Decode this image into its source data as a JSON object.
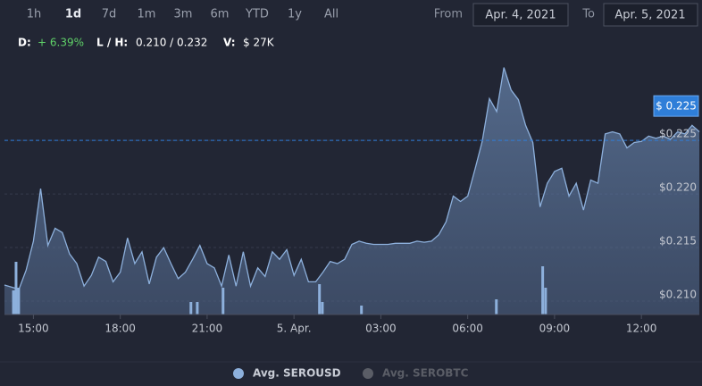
{
  "chart_data": {
    "type": "area",
    "range_selector": {
      "buttons": [
        "1h",
        "1d",
        "7d",
        "1m",
        "3m",
        "6m",
        "YTD",
        "1y",
        "All"
      ],
      "selected": 1,
      "from_label": "From",
      "from": "Apr. 4, 2021",
      "to_label": "To",
      "to": "Apr. 5, 2021"
    },
    "stats": {
      "change_label": "D:",
      "change": "+ 6.39%",
      "range_label": "L / H:",
      "range": "0.210 / 0.232",
      "volume_label": "V:",
      "volume": "$ 27K"
    },
    "x": [
      14,
      14.25,
      14.5,
      14.75,
      15,
      15.25,
      15.5,
      15.75,
      16,
      16.25,
      16.5,
      16.75,
      17,
      17.25,
      17.5,
      17.75,
      18,
      18.25,
      18.5,
      18.75,
      19,
      19.25,
      19.5,
      19.75,
      20,
      20.25,
      20.5,
      20.75,
      21,
      21.25,
      21.5,
      21.75,
      22,
      22.25,
      22.5,
      22.75,
      23,
      23.25,
      23.5,
      23.75,
      24,
      24.25,
      24.5,
      24.75,
      25,
      25.25,
      25.5,
      25.75,
      26,
      26.25,
      26.5,
      26.75,
      27,
      27.25,
      27.5,
      27.75,
      28,
      28.25,
      28.5,
      28.75,
      29,
      29.25,
      29.5,
      29.75,
      30,
      30.25,
      30.5,
      30.75,
      31,
      31.25,
      31.5,
      31.75,
      32,
      32.25,
      32.5,
      32.75,
      33,
      33.25,
      33.5,
      33.75,
      34,
      34.25,
      34.5,
      34.75,
      35,
      35.25,
      35.5,
      35.75,
      36,
      36.25,
      36.5,
      36.75,
      37,
      37.25,
      37.5,
      37.75,
      38
    ],
    "series": [
      {
        "name": "Avg. SEROUSD",
        "color": "#8db0dc",
        "values": [
          0.2115,
          0.2113,
          0.2111,
          0.2129,
          0.2156,
          0.2205,
          0.2152,
          0.2168,
          0.2164,
          0.2144,
          0.2135,
          0.2114,
          0.2124,
          0.2141,
          0.2137,
          0.2118,
          0.2127,
          0.2159,
          0.2135,
          0.2146,
          0.2116,
          0.2141,
          0.215,
          0.2135,
          0.2121,
          0.2127,
          0.2139,
          0.2152,
          0.2135,
          0.2131,
          0.2114,
          0.2143,
          0.2114,
          0.2146,
          0.2114,
          0.2131,
          0.2123,
          0.2146,
          0.2139,
          0.2148,
          0.2124,
          0.2139,
          0.2118,
          0.2118,
          0.2127,
          0.2137,
          0.2135,
          0.2139,
          0.2153,
          0.2156,
          0.2154,
          0.2153,
          0.2153,
          0.2153,
          0.2154,
          0.2154,
          0.2154,
          0.2156,
          0.2155,
          0.2156,
          0.2162,
          0.2174,
          0.2198,
          0.2193,
          0.2198,
          0.2223,
          0.2249,
          0.2289,
          0.2277,
          0.2318,
          0.2297,
          0.2288,
          0.2264,
          0.2248,
          0.2188,
          0.221,
          0.2221,
          0.2224,
          0.2198,
          0.221,
          0.2185,
          0.2213,
          0.221,
          0.2256,
          0.2258,
          0.2256,
          0.2243,
          0.2248,
          0.2249,
          0.2254,
          0.2252,
          0.2254,
          0.2251,
          0.2258,
          0.2256,
          0.2264,
          0.2258
        ]
      }
    ],
    "hidden_series": [
      {
        "name": "Avg. SEROBTC",
        "color": "#5a5d66"
      }
    ],
    "volume": {
      "x": [
        14.31,
        14.4,
        14.49,
        20.44,
        20.66,
        21.55,
        24.88,
        24.98,
        26.33,
        30.99,
        32.59,
        32.69
      ],
      "values": [
        1350,
        2950,
        1500,
        700,
        700,
        1500,
        1700,
        700,
        500,
        850,
        2700,
        1500
      ],
      "color": "#8db0dc",
      "lim": [
        0,
        14600
      ]
    },
    "price_line": {
      "value": 0.225,
      "label": "$ 0.225",
      "color": "#2f7ed8"
    },
    "xlim": [
      14,
      38
    ],
    "ylim": [
      0.20875,
      0.2331
    ],
    "xticks": [
      {
        "value": 15,
        "label": "15:00"
      },
      {
        "value": 18,
        "label": "18:00"
      },
      {
        "value": 21,
        "label": "21:00"
      },
      {
        "value": 24,
        "label": "5. Apr."
      },
      {
        "value": 27,
        "label": "03:00"
      },
      {
        "value": 30,
        "label": "06:00"
      },
      {
        "value": 33,
        "label": "09:00"
      },
      {
        "value": 36,
        "label": "12:00"
      }
    ],
    "yticks": [
      {
        "value": 0.21,
        "label": "$0.210"
      },
      {
        "value": 0.215,
        "label": "$0.215"
      },
      {
        "value": 0.22,
        "label": "$0.220"
      },
      {
        "value": 0.225,
        "label": "$0.225"
      }
    ],
    "grid": true,
    "legend": "bottom"
  }
}
